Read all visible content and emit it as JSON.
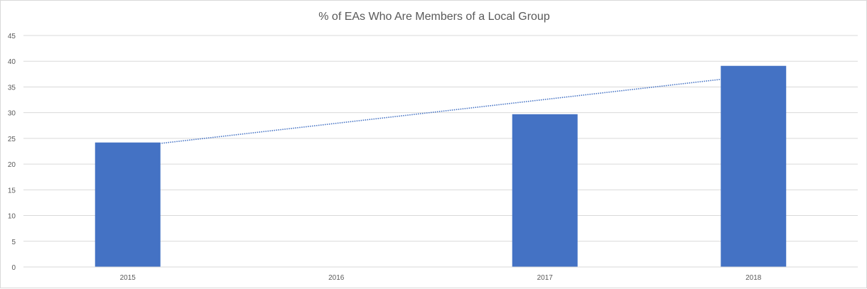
{
  "chart_data": {
    "type": "bar",
    "title": "% of EAs Who Are Members of a Local Group",
    "xlabel": "",
    "ylabel": "",
    "categories": [
      "2015",
      "2016",
      "2017",
      "2018"
    ],
    "values": [
      24.2,
      null,
      29.7,
      39.1
    ],
    "ylim": [
      0,
      45
    ],
    "yticks": [
      0,
      5,
      10,
      15,
      20,
      25,
      30,
      35,
      40,
      45
    ],
    "grid": true,
    "legend": "none",
    "trendline": {
      "type": "linear",
      "style": "dotted",
      "start": 23.3,
      "end": 37.2
    },
    "colors": {
      "bar": "#4472C4",
      "trendline": "#4472C4",
      "grid": "#d9d9d9"
    }
  }
}
